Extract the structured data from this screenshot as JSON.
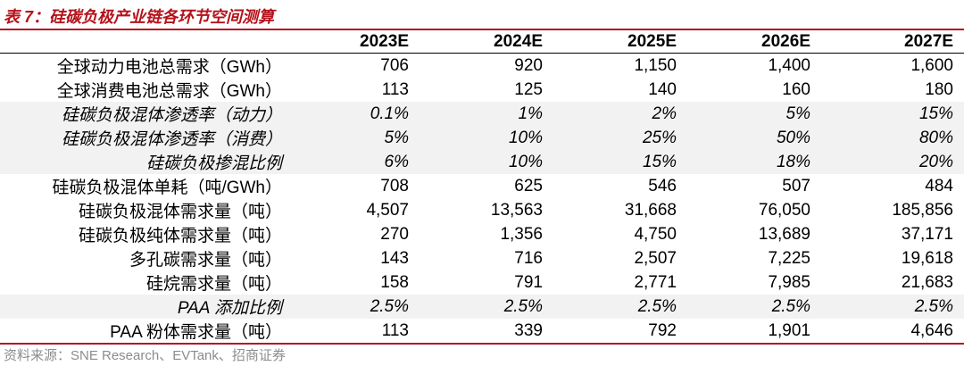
{
  "title": "表 7：硅碳负极产业链各环节空间测算",
  "columns": [
    "",
    "2023E",
    "2024E",
    "2025E",
    "2026E",
    "2027E"
  ],
  "rows": [
    {
      "label": "全球动力电池总需求（GWh）",
      "values": [
        "706",
        "920",
        "1,150",
        "1,400",
        "1,600"
      ],
      "italic": false
    },
    {
      "label": "全球消费电池总需求（GWh）",
      "values": [
        "113",
        "125",
        "140",
        "160",
        "180"
      ],
      "italic": false
    },
    {
      "label": "硅碳负极混体渗透率（动力）",
      "values": [
        "0.1%",
        "1%",
        "2%",
        "5%",
        "15%"
      ],
      "italic": true
    },
    {
      "label": "硅碳负极混体渗透率（消费）",
      "values": [
        "5%",
        "10%",
        "25%",
        "50%",
        "80%"
      ],
      "italic": true
    },
    {
      "label": "硅碳负极掺混比例",
      "values": [
        "6%",
        "10%",
        "15%",
        "18%",
        "20%"
      ],
      "italic": true
    },
    {
      "label": "硅碳负极混体单耗（吨/GWh）",
      "values": [
        "708",
        "625",
        "546",
        "507",
        "484"
      ],
      "italic": false
    },
    {
      "label": "硅碳负极混体需求量（吨）",
      "values": [
        "4,507",
        "13,563",
        "31,668",
        "76,050",
        "185,856"
      ],
      "italic": false
    },
    {
      "label": "硅碳负极纯体需求量（吨）",
      "values": [
        "270",
        "1,356",
        "4,750",
        "13,689",
        "37,171"
      ],
      "italic": false
    },
    {
      "label": "多孔碳需求量（吨）",
      "values": [
        "143",
        "716",
        "2,507",
        "7,225",
        "19,618"
      ],
      "italic": false
    },
    {
      "label": "硅烷需求量（吨）",
      "values": [
        "158",
        "791",
        "2,771",
        "7,985",
        "21,683"
      ],
      "italic": false
    },
    {
      "label": "PAA 添加比例",
      "values": [
        "2.5%",
        "2.5%",
        "2.5%",
        "2.5%",
        "2.5%"
      ],
      "italic": true
    },
    {
      "label": "PAA 粉体需求量（吨）",
      "values": [
        "113",
        "339",
        "792",
        "1,901",
        "4,646"
      ],
      "italic": false
    }
  ],
  "source": "资料来源：SNE Research、EVTank、招商证券",
  "colors": {
    "accent": "#b5121b",
    "shade": "#f2f2f2",
    "source_text": "#8c8c8c"
  }
}
